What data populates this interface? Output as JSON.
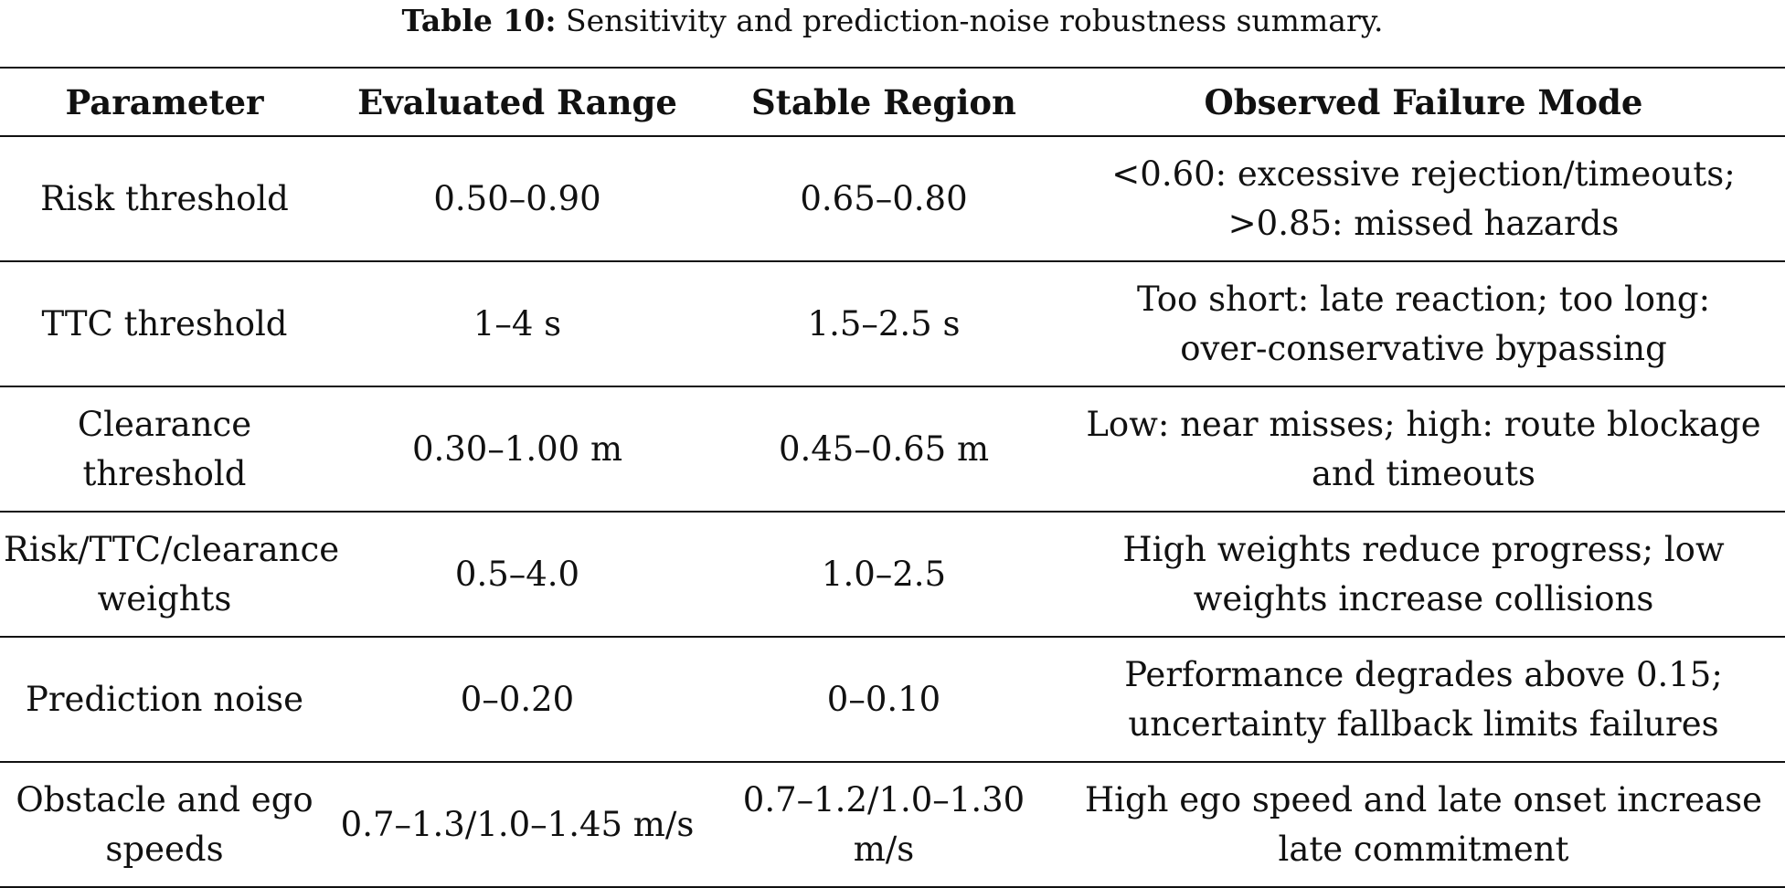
{
  "caption": {
    "label": "Table 10:",
    "text": "Sensitivity and prediction-noise robustness summary."
  },
  "table": {
    "headers": [
      "Parameter",
      "Evaluated Range",
      "Stable Region",
      "Observed Failure Mode"
    ],
    "rows": [
      {
        "parameter": [
          "Risk threshold"
        ],
        "evaluated_range": "0.50–0.90",
        "stable_region": "0.65–0.80",
        "failure_mode": [
          "<0.60: excessive rejection/timeouts;",
          ">0.85: missed hazards"
        ]
      },
      {
        "parameter": [
          "TTC threshold"
        ],
        "evaluated_range": "1–4 s",
        "stable_region": "1.5–2.5 s",
        "failure_mode": [
          "Too short: late reaction; too long:",
          "over-conservative bypassing"
        ]
      },
      {
        "parameter": [
          "Clearance",
          "threshold"
        ],
        "evaluated_range": "0.30–1.00 m",
        "stable_region": "0.45–0.65 m",
        "failure_mode": [
          "Low: near misses; high: route blockage",
          "and timeouts"
        ]
      },
      {
        "parameter": [
          "Risk/TTC/clearance",
          "weights"
        ],
        "evaluated_range": "0.5–4.0",
        "stable_region": "1.0–2.5",
        "failure_mode": [
          "High weights reduce progress; low",
          "weights increase collisions"
        ]
      },
      {
        "parameter": [
          "Prediction noise"
        ],
        "evaluated_range": "0–0.20",
        "stable_region": "0–0.10",
        "failure_mode": [
          "Performance degrades above 0.15;",
          "uncertainty fallback limits failures"
        ]
      },
      {
        "parameter": [
          "Obstacle and ego",
          "speeds"
        ],
        "evaluated_range": "0.7–1.3/1.0–1.45 m/s",
        "stable_region": "0.7–1.2/1.0–1.30 m/s",
        "failure_mode": [
          "High ego speed and late onset increase",
          "late commitment"
        ]
      }
    ]
  }
}
